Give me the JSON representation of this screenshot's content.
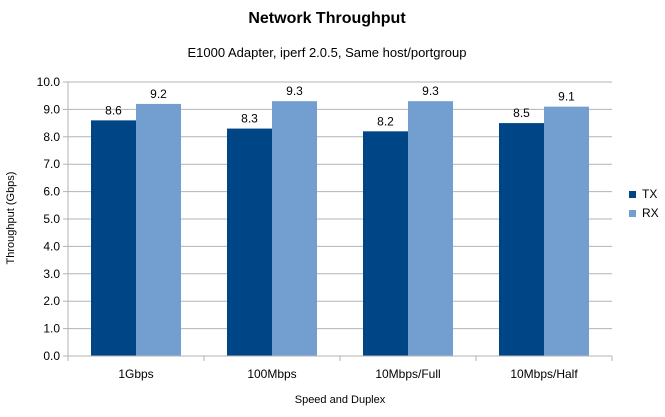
{
  "chart_data": {
    "type": "bar",
    "title": "Network Throughput",
    "subtitle": "E1000 Adapter, iperf 2.0.5, Same host/portgroup",
    "xlabel": "Speed and Duplex",
    "ylabel": "Throughput (Gbps)",
    "categories": [
      "1Gbps",
      "100Mbps",
      "10Mbps/Full",
      "10Mbps/Half"
    ],
    "series": [
      {
        "name": "TX",
        "values": [
          8.6,
          8.3,
          8.2,
          8.5
        ],
        "color": "#004586"
      },
      {
        "name": "RX",
        "values": [
          9.2,
          9.3,
          9.3,
          9.1
        ],
        "color": "#729fcf"
      }
    ],
    "ylim": [
      0,
      10
    ],
    "yticks": [
      "0.0",
      "1.0",
      "2.0",
      "3.0",
      "4.0",
      "5.0",
      "6.0",
      "7.0",
      "8.0",
      "9.0",
      "10.0"
    ],
    "grid": true,
    "legend_position": "right"
  }
}
